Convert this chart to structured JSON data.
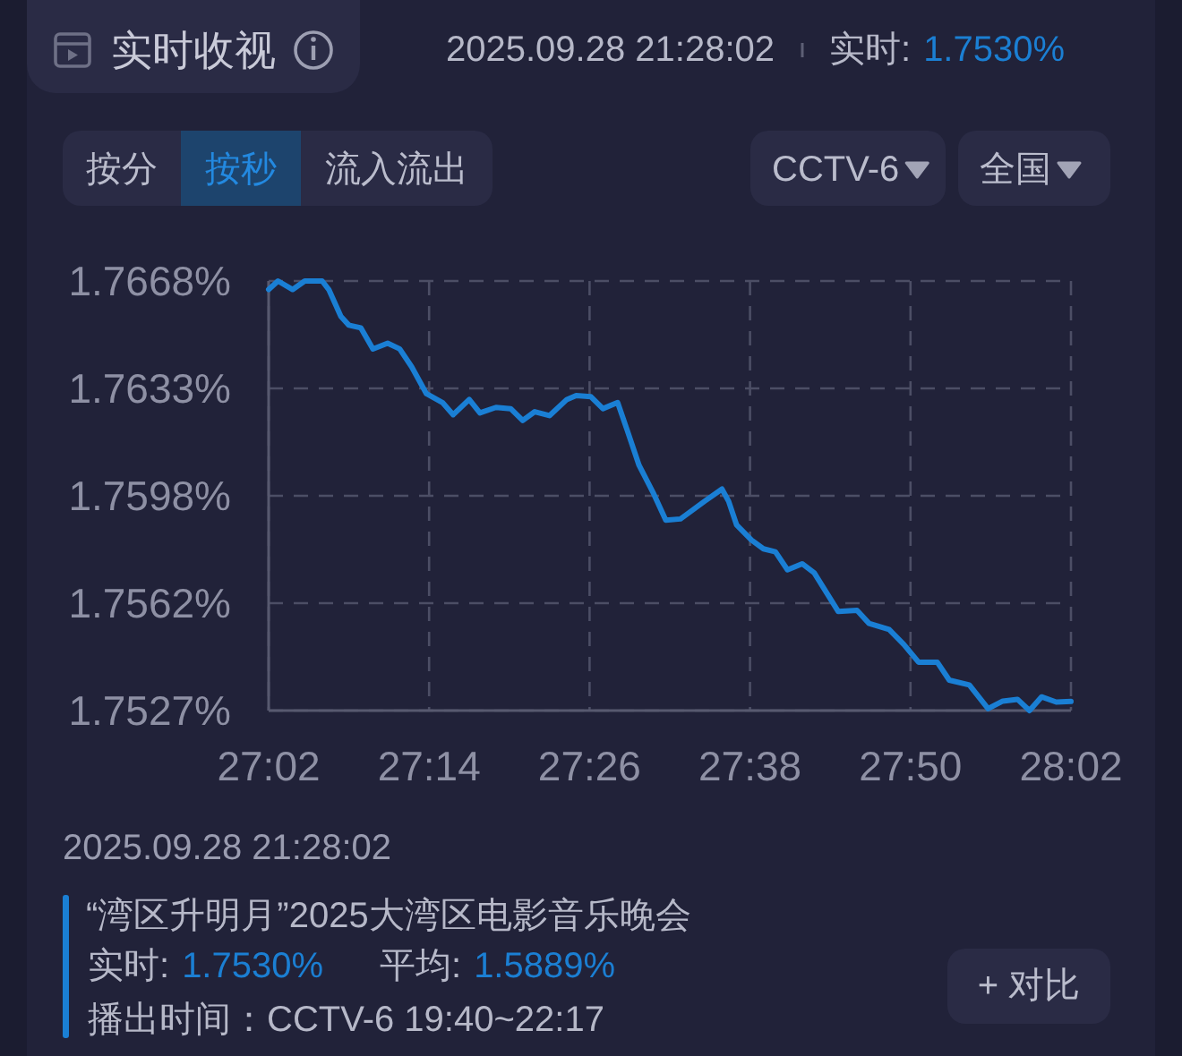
{
  "chart_data": {
    "type": "line",
    "title": "实时收视",
    "annotations": [
      "2025.09.28 21:28:02",
      "实时:",
      "1.7530%",
      "按分",
      "按秒",
      "流入流出",
      "CCTV-6",
      "全国",
      "2025.09.28 21:28:02",
      "“湾区升明月”2025大湾区电影音乐晚会",
      "实时:",
      "1.7530%",
      "平均:",
      "1.5889%",
      "播出时间：CCTV-6 19:40~22:17",
      "+ 对比"
    ],
    "x": [
      1622.0,
      1622.7,
      1623.8,
      1624.7,
      1626.0,
      1626.5,
      1627.4,
      1628.0,
      1628.9,
      1629.8,
      1630.9,
      1631.8,
      1632.7,
      1633.8,
      1635.0,
      1635.8,
      1637.0,
      1637.8,
      1639.0,
      1640.1,
      1641.0,
      1641.9,
      1643.0,
      1644.3,
      1645.0,
      1646.1,
      1647.0,
      1648.1,
      1648.8,
      1649.7,
      1650.8,
      1651.7,
      1652.8,
      1654.6,
      1655.9,
      1656.4,
      1657.0,
      1658.1,
      1659.0,
      1659.9,
      1660.8,
      1661.9,
      1662.8,
      1664.6,
      1666.0,
      1666.9,
      1668.4,
      1669.5,
      1670.6,
      1672.0,
      1672.9,
      1674.4,
      1675.8,
      1676.9,
      1678.0,
      1678.9,
      1679.8,
      1680.9,
      1682.0
    ],
    "series": [
      {
        "color": "#1a7fd4",
        "values": [
          1.76652,
          1.7668,
          1.76652,
          1.7668,
          1.7668,
          1.76652,
          1.76564,
          1.76535,
          1.76526,
          1.76457,
          1.76476,
          1.76457,
          1.76398,
          1.7631,
          1.76281,
          1.76241,
          1.76291,
          1.76247,
          1.76265,
          1.76261,
          1.76222,
          1.76251,
          1.76238,
          1.76291,
          1.76304,
          1.763,
          1.76261,
          1.76281,
          1.76192,
          1.76075,
          1.75981,
          1.75895,
          1.75899,
          1.75957,
          1.75997,
          1.75957,
          1.75879,
          1.7583,
          1.75801,
          1.75791,
          1.75732,
          1.75752,
          1.75722,
          1.75595,
          1.75599,
          1.75556,
          1.75536,
          1.75487,
          1.75429,
          1.75429,
          1.7537,
          1.75354,
          1.75276,
          1.75301,
          1.75307,
          1.7527,
          1.75315,
          1.75298,
          1.753
        ]
      }
    ],
    "xlim": [
      1622,
      1682
    ],
    "xticks": [
      {
        "value": 1622,
        "label": "27:02"
      },
      {
        "value": 1634,
        "label": "27:14"
      },
      {
        "value": 1646,
        "label": "27:26"
      },
      {
        "value": 1658,
        "label": "27:38"
      },
      {
        "value": 1670,
        "label": "27:50"
      },
      {
        "value": 1682,
        "label": "28:02"
      }
    ],
    "ylim": [
      1.7527,
      1.7668
    ],
    "yticks": [
      {
        "value": 1.7527,
        "label": "1.7527%"
      },
      {
        "value": 1.756225,
        "label": "1.7562%"
      },
      {
        "value": 1.75975,
        "label": "1.7598%"
      },
      {
        "value": 1.763275,
        "label": "1.7633%"
      },
      {
        "value": 1.7668,
        "label": "1.7668%"
      }
    ],
    "grid": true
  }
}
